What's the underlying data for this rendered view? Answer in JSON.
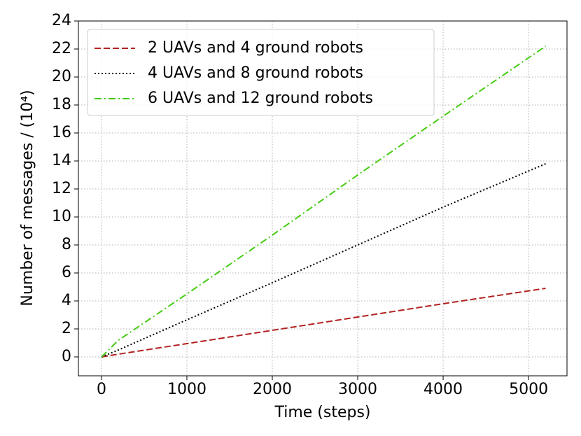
{
  "chart_data": {
    "type": "line",
    "xlabel": "Time (steps)",
    "ylabel": "Number of messages / (10⁴)",
    "x": [
      0,
      200,
      1000,
      2000,
      3000,
      4000,
      5200
    ],
    "series": [
      {
        "name": "2 UAVs and 4 ground robots",
        "color": "#b22222",
        "linestyle": "dashed",
        "values": [
          0,
          0.2,
          0.95,
          1.9,
          2.85,
          3.8,
          4.9
        ]
      },
      {
        "name": "4 UAVs and 8 ground robots",
        "color": "#000000",
        "linestyle": "dotted",
        "values": [
          0,
          0.5,
          2.65,
          5.3,
          8.0,
          10.7,
          13.8
        ]
      },
      {
        "name": "6 UAVs and 12 ground robots",
        "color": "#44cc11",
        "linestyle": "dashdot",
        "values": [
          0,
          1.2,
          4.5,
          8.7,
          13.0,
          17.2,
          22.2
        ]
      }
    ],
    "xlim": [
      -270,
      5450
    ],
    "ylim": [
      -1.35,
      24
    ],
    "xticks": [
      0,
      1000,
      2000,
      3000,
      4000,
      5000
    ],
    "yticks": [
      0,
      2,
      4,
      6,
      8,
      10,
      12,
      14,
      16,
      18,
      20,
      22,
      24
    ],
    "grid": true,
    "legend": "upper left"
  }
}
